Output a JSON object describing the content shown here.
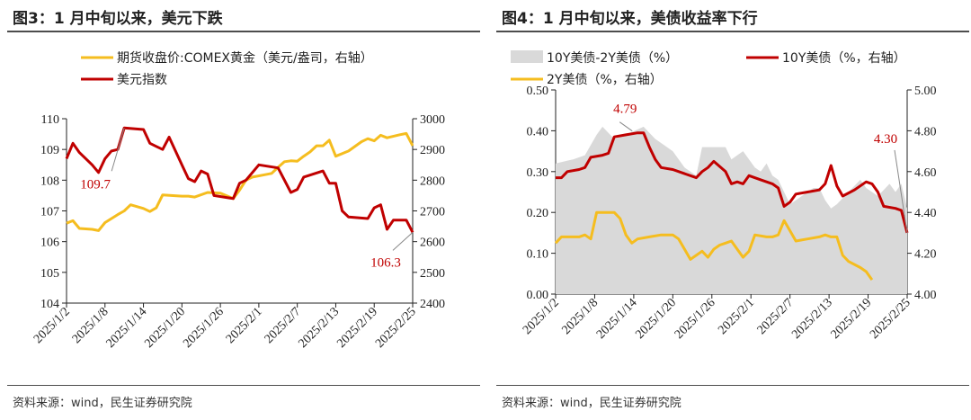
{
  "left": {
    "title": "图3：1 月中旬以来，美元下跌",
    "source": "资料来源：wind，民生证券研究院",
    "chart_data": {
      "type": "line",
      "x_tick_labels": [
        "2025/1/2",
        "2025/1/8",
        "2025/1/14",
        "2025/1/20",
        "2025/1/26",
        "2025/2/1",
        "2025/2/7",
        "2025/2/13",
        "2025/2/19",
        "2025/2/25"
      ],
      "y_left": {
        "min": 104,
        "max": 110,
        "ticks": [
          "104",
          "105",
          "106",
          "107",
          "108",
          "109",
          "110"
        ]
      },
      "y_right": {
        "min": 2400,
        "max": 3000,
        "ticks": [
          "2400",
          "2500",
          "2600",
          "2700",
          "2800",
          "2900",
          "3000"
        ]
      },
      "series": [
        {
          "name": "期货收盘价:COMEX黄金（美元/盎司，右轴）",
          "axis": "right",
          "color": "#f5bd1f",
          "points": [
            [
              0,
              2660
            ],
            [
              1,
              2668
            ],
            [
              2,
              2643
            ],
            [
              4,
              2640
            ],
            [
              5,
              2636
            ],
            [
              6,
              2662
            ],
            [
              8,
              2688
            ],
            [
              9,
              2700
            ],
            [
              10,
              2720
            ],
            [
              12,
              2708
            ],
            [
              13,
              2698
            ],
            [
              14,
              2710
            ],
            [
              15,
              2752
            ],
            [
              18,
              2748
            ],
            [
              19,
              2748
            ],
            [
              20,
              2745
            ],
            [
              22,
              2760
            ],
            [
              24,
              2758
            ],
            [
              26,
              2740
            ],
            [
              27,
              2768
            ],
            [
              28,
              2800
            ],
            [
              29,
              2810
            ],
            [
              31,
              2818
            ],
            [
              32,
              2822
            ],
            [
              33,
              2842
            ],
            [
              34,
              2860
            ],
            [
              35,
              2863
            ],
            [
              36,
              2862
            ],
            [
              37,
              2878
            ],
            [
              38,
              2892
            ],
            [
              39,
              2912
            ],
            [
              40,
              2912
            ],
            [
              41,
              2930
            ],
            [
              42,
              2878
            ],
            [
              44,
              2895
            ],
            [
              46,
              2925
            ],
            [
              47,
              2935
            ],
            [
              48,
              2928
            ],
            [
              49,
              2946
            ],
            [
              50,
              2938
            ],
            [
              52,
              2948
            ],
            [
              53,
              2952
            ],
            [
              54,
              2912
            ]
          ]
        },
        {
          "name": "美元指数",
          "axis": "left",
          "color": "#c00000",
          "points": [
            [
              0,
              108.7
            ],
            [
              1,
              109.2
            ],
            [
              2,
              108.9
            ],
            [
              3,
              108.7
            ],
            [
              4,
              108.5
            ],
            [
              5,
              108.25
            ],
            [
              6,
              108.7
            ],
            [
              7,
              108.95
            ],
            [
              8,
              109.0
            ],
            [
              9,
              109.7
            ],
            [
              12,
              109.65
            ],
            [
              13,
              109.2
            ],
            [
              14,
              109.1
            ],
            [
              15,
              109.0
            ],
            [
              16,
              109.4
            ],
            [
              17,
              108.95
            ],
            [
              18,
              108.5
            ],
            [
              19,
              108.05
            ],
            [
              20,
              107.95
            ],
            [
              21,
              108.3
            ],
            [
              22,
              108.2
            ],
            [
              23,
              107.5
            ],
            [
              26,
              107.4
            ],
            [
              27,
              107.9
            ],
            [
              28,
              108.0
            ],
            [
              30,
              108.5
            ],
            [
              33,
              108.4
            ],
            [
              34,
              108.0
            ],
            [
              35,
              107.6
            ],
            [
              36,
              107.7
            ],
            [
              37,
              108.1
            ],
            [
              40,
              108.3
            ],
            [
              41,
              107.9
            ],
            [
              42,
              107.9
            ],
            [
              43,
              107.0
            ],
            [
              44,
              106.8
            ],
            [
              47,
              106.75
            ],
            [
              48,
              107.1
            ],
            [
              49,
              107.2
            ],
            [
              50,
              106.4
            ],
            [
              51,
              106.7
            ],
            [
              53,
              106.7
            ],
            [
              54,
              106.3
            ]
          ]
        }
      ],
      "annotations": [
        {
          "text": "109.7"
        },
        {
          "text": "106.3"
        }
      ]
    }
  },
  "right": {
    "title": "图4：1 月中旬以来，美债收益率下行",
    "source": "资料来源：wind，民生证券研究院",
    "chart_data": {
      "type": "area",
      "x_tick_labels": [
        "2025/1/2",
        "2025/1/8",
        "2025/1/14",
        "2025/1/20",
        "2025/1/26",
        "2025/2/1",
        "2025/2/7",
        "2025/2/13",
        "2025/2/19",
        "2025/2/25"
      ],
      "y_left": {
        "min": 0,
        "max": 0.5,
        "ticks": [
          "0.00",
          "0.10",
          "0.20",
          "0.30",
          "0.40",
          "0.50"
        ]
      },
      "y_right": {
        "min": 4.0,
        "max": 5.0,
        "ticks": [
          "4.00",
          "4.20",
          "4.40",
          "4.60",
          "4.80",
          "5.00"
        ]
      },
      "series": [
        {
          "name": "10Y美债-2Y美债（%）",
          "axis": "left",
          "type": "area",
          "color": "#d9d9d9",
          "points": [
            [
              0,
              0.32
            ],
            [
              3,
              0.33
            ],
            [
              5,
              0.34
            ],
            [
              7,
              0.39
            ],
            [
              8,
              0.41
            ],
            [
              10,
              0.38
            ],
            [
              12,
              0.39
            ],
            [
              15,
              0.41
            ],
            [
              17,
              0.38
            ],
            [
              18,
              0.37
            ],
            [
              20,
              0.35
            ],
            [
              22,
              0.31
            ],
            [
              24,
              0.29
            ],
            [
              25,
              0.36
            ],
            [
              29,
              0.36
            ],
            [
              30,
              0.33
            ],
            [
              31,
              0.34
            ],
            [
              32,
              0.35
            ],
            [
              34,
              0.31
            ],
            [
              35,
              0.3
            ],
            [
              36,
              0.32
            ],
            [
              37,
              0.29
            ],
            [
              38,
              0.28
            ],
            [
              39,
              0.25
            ],
            [
              40,
              0.22
            ],
            [
              42,
              0.24
            ],
            [
              44,
              0.26
            ],
            [
              45,
              0.26
            ],
            [
              46,
              0.23
            ],
            [
              47,
              0.21
            ],
            [
              48,
              0.22
            ],
            [
              50,
              0.25
            ],
            [
              52,
              0.28
            ],
            [
              53,
              0.26
            ],
            [
              55,
              0.24
            ],
            [
              57,
              0.27
            ],
            [
              58,
              0.25
            ],
            [
              59,
              0.27
            ],
            [
              60,
              0.21
            ]
          ]
        },
        {
          "name": "10Y美债（%，右轴）",
          "axis": "right",
          "color": "#c00000",
          "points": [
            [
              0,
              4.57
            ],
            [
              1,
              4.57
            ],
            [
              2,
              4.6
            ],
            [
              4,
              4.61
            ],
            [
              5,
              4.62
            ],
            [
              6,
              4.67
            ],
            [
              8,
              4.68
            ],
            [
              9,
              4.69
            ],
            [
              10,
              4.77
            ],
            [
              12,
              4.78
            ],
            [
              14,
              4.79
            ],
            [
              15,
              4.79
            ],
            [
              16,
              4.72
            ],
            [
              17,
              4.66
            ],
            [
              18,
              4.62
            ],
            [
              20,
              4.61
            ],
            [
              22,
              4.59
            ],
            [
              24,
              4.57
            ],
            [
              25,
              4.6
            ],
            [
              26,
              4.62
            ],
            [
              27,
              4.65
            ],
            [
              29,
              4.6
            ],
            [
              30,
              4.54
            ],
            [
              31,
              4.55
            ],
            [
              32,
              4.54
            ],
            [
              33,
              4.58
            ],
            [
              35,
              4.56
            ],
            [
              37,
              4.54
            ],
            [
              38,
              4.52
            ],
            [
              39,
              4.43
            ],
            [
              40,
              4.45
            ],
            [
              41,
              4.49
            ],
            [
              43,
              4.5
            ],
            [
              45,
              4.51
            ],
            [
              46,
              4.54
            ],
            [
              47,
              4.63
            ],
            [
              48,
              4.53
            ],
            [
              49,
              4.48
            ],
            [
              51,
              4.51
            ],
            [
              53,
              4.55
            ],
            [
              54,
              4.54
            ],
            [
              55,
              4.5
            ],
            [
              56,
              4.43
            ],
            [
              58,
              4.42
            ],
            [
              59,
              4.41
            ],
            [
              60,
              4.3
            ]
          ]
        },
        {
          "name": "2Y美债（%，右轴）",
          "axis": "right",
          "color": "#f5bd1f",
          "points": [
            [
              0,
              4.25
            ],
            [
              1,
              4.28
            ],
            [
              2,
              4.28
            ],
            [
              4,
              4.28
            ],
            [
              5,
              4.29
            ],
            [
              6,
              4.27
            ],
            [
              7,
              4.4
            ],
            [
              10,
              4.4
            ],
            [
              11,
              4.37
            ],
            [
              12,
              4.29
            ],
            [
              13,
              4.25
            ],
            [
              14,
              4.27
            ],
            [
              16,
              4.28
            ],
            [
              18,
              4.29
            ],
            [
              20,
              4.29
            ],
            [
              21,
              4.27
            ],
            [
              22,
              4.22
            ],
            [
              23,
              4.17
            ],
            [
              24,
              4.19
            ],
            [
              25,
              4.21
            ],
            [
              26,
              4.18
            ],
            [
              27,
              4.22
            ],
            [
              28,
              4.24
            ],
            [
              29,
              4.25
            ],
            [
              30,
              4.26
            ],
            [
              31,
              4.22
            ],
            [
              32,
              4.18
            ],
            [
              33,
              4.21
            ],
            [
              34,
              4.29
            ],
            [
              36,
              4.28
            ],
            [
              37,
              4.28
            ],
            [
              38,
              4.29
            ],
            [
              39,
              4.36
            ],
            [
              40,
              4.31
            ],
            [
              41,
              4.26
            ],
            [
              43,
              4.27
            ],
            [
              45,
              4.28
            ],
            [
              46,
              4.29
            ],
            [
              47,
              4.28
            ],
            [
              48,
              4.28
            ],
            [
              49,
              4.19
            ],
            [
              50,
              4.16
            ],
            [
              52,
              4.13
            ],
            [
              53,
              4.11
            ],
            [
              54,
              4.07
            ]
          ]
        }
      ],
      "annotations": [
        {
          "text": "4.79"
        },
        {
          "text": "4.30"
        }
      ]
    }
  }
}
